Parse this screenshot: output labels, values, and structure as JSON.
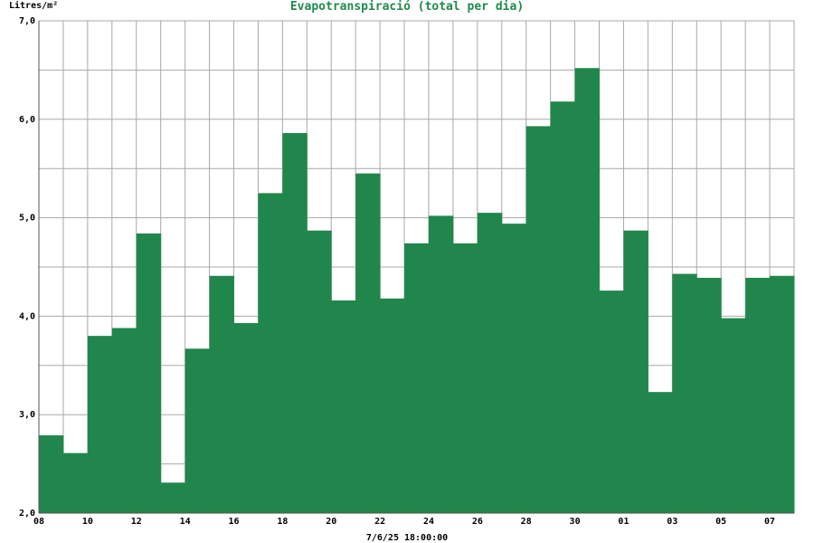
{
  "chart_data": {
    "type": "bar",
    "title": "Evapotranspiració (total per dia)",
    "ylabel": "Litres/m²",
    "footer": "7/6/25 18:00:00",
    "ylim": [
      2.0,
      7.0
    ],
    "y_ticks": [
      "2,0",
      "3,0",
      "4,0",
      "5,0",
      "6,0",
      "7,0"
    ],
    "x_ticks": [
      "08",
      "10",
      "12",
      "14",
      "16",
      "18",
      "20",
      "22",
      "24",
      "26",
      "28",
      "30",
      "01",
      "03",
      "05",
      "07"
    ],
    "categories": [
      "08",
      "09",
      "10",
      "11",
      "12",
      "13",
      "14",
      "15",
      "16",
      "17",
      "18",
      "19",
      "20",
      "21",
      "22",
      "23",
      "24",
      "25",
      "26",
      "27",
      "28",
      "29",
      "30",
      "31",
      "01",
      "02",
      "03",
      "04",
      "05",
      "06",
      "07"
    ],
    "values": [
      2.79,
      2.61,
      3.8,
      3.88,
      4.84,
      2.31,
      3.67,
      4.41,
      3.93,
      5.25,
      5.86,
      4.87,
      4.16,
      5.45,
      4.18,
      4.74,
      5.02,
      4.74,
      5.05,
      4.94,
      5.93,
      6.18,
      6.52,
      4.26,
      4.87,
      3.23,
      4.43,
      4.39,
      3.98,
      4.39,
      4.41
    ],
    "grid": true,
    "colors": {
      "bar": "#21864b",
      "grid": "#a8a8a8",
      "title": "#1f8a4c"
    }
  }
}
